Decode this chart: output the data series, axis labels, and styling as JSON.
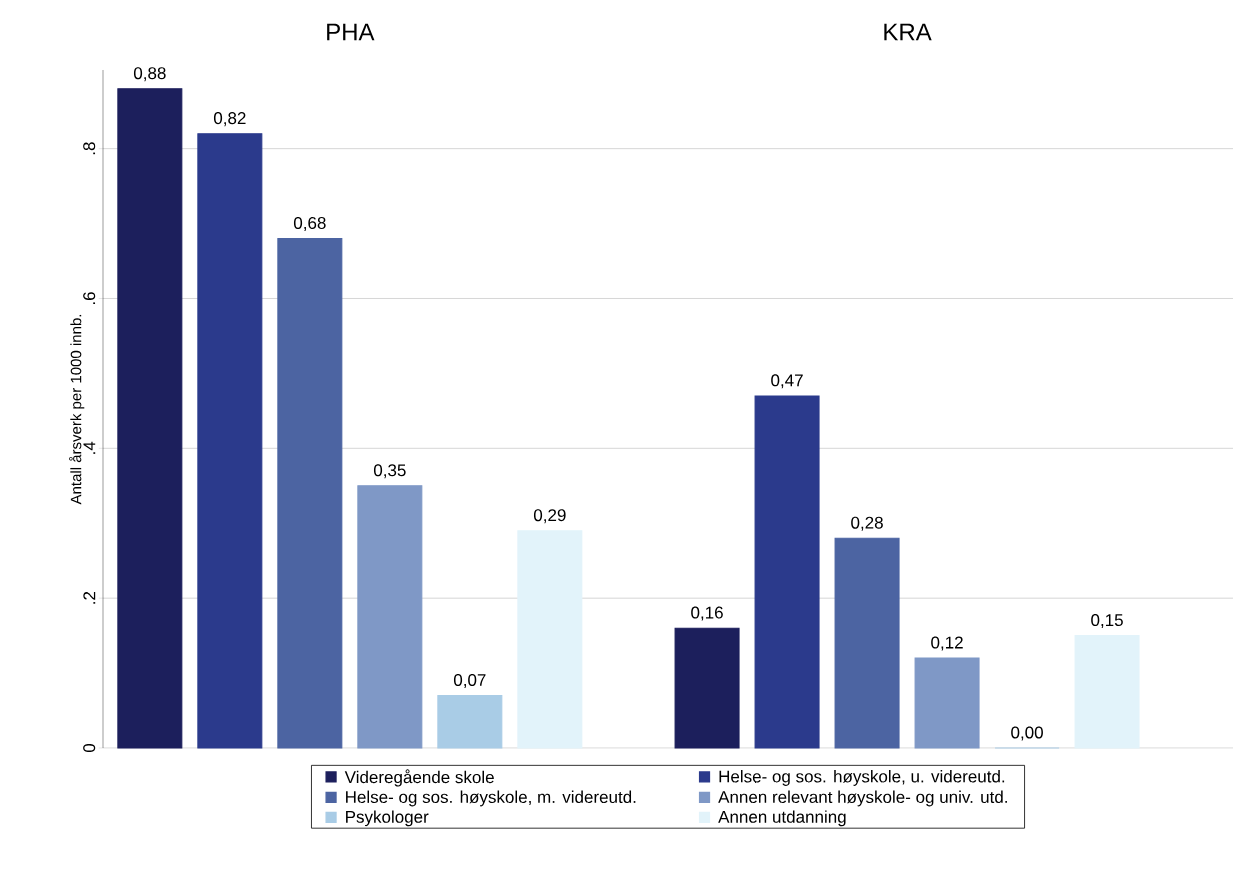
{
  "chart_data": {
    "type": "bar",
    "categories": [
      "PHA",
      "KRA"
    ],
    "ylabel": "Antall årsverk per 1000 innb.",
    "ylim": [
      0,
      0.905
    ],
    "yticks": [
      0,
      {
        "value": 0.2,
        "label": ".2"
      },
      {
        "value": 0.4,
        "label": ".4"
      },
      {
        "value": 0.6,
        "label": ".6"
      },
      {
        "value": 0.8,
        "label": ".8"
      }
    ],
    "grid": "y",
    "legend": "bottom",
    "series": [
      {
        "name": "Videregående skole",
        "color": "#1c1f5c",
        "values": [
          0.88,
          0.16
        ],
        "value_labels": [
          "0,88",
          "0,16"
        ]
      },
      {
        "name": "Helse- og sos. høyskole, u. videreutd.",
        "color": "#2b3a8c",
        "values": [
          0.82,
          0.47
        ],
        "value_labels": [
          "0,82",
          "0,47"
        ]
      },
      {
        "name": "Helse- og sos. høyskole, m. videreutd.",
        "color": "#4c64a2",
        "values": [
          0.68,
          0.28
        ],
        "value_labels": [
          "0,68",
          "0,28"
        ]
      },
      {
        "name": "Annen relevant høyskole- og univ. utd.",
        "color": "#7f98c6",
        "values": [
          0.35,
          0.12
        ],
        "value_labels": [
          "0,35",
          "0,12"
        ]
      },
      {
        "name": "Psykologer",
        "color": "#a9cce6",
        "values": [
          0.07,
          0.0
        ],
        "value_labels": [
          "0,07",
          "0,00"
        ]
      },
      {
        "name": "Annen utdanning",
        "color": "#e2f3fa",
        "values": [
          0.29,
          0.15
        ],
        "value_labels": [
          "0,29",
          "0,15"
        ]
      }
    ]
  }
}
